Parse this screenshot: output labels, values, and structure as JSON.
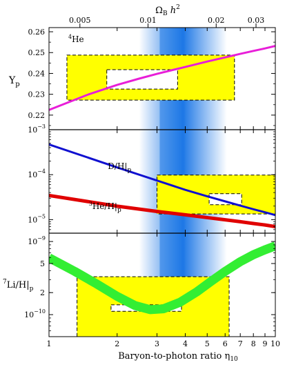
{
  "chart_data": {
    "type": "line",
    "x_axis": {
      "label": "Baryon-to-photon ratio η",
      "label_sub": "10",
      "scale": "log",
      "range": [
        1,
        10
      ],
      "ticks": [
        1,
        2,
        3,
        4,
        5,
        6,
        7,
        8,
        9,
        10
      ],
      "tick_labels": [
        "1",
        "2",
        "3",
        "4",
        "5",
        "6",
        "7",
        "8",
        "9",
        "10"
      ]
    },
    "top_axis": {
      "label": "Ω",
      "label_sub": "B",
      "label_suffix": " h",
      "label_sup": "2",
      "ticks": [
        0.005,
        0.01,
        0.02,
        0.03
      ],
      "tick_labels": [
        "0.005",
        "0.01",
        "0.02",
        "0.03"
      ]
    },
    "cmb_band": {
      "x_center": 3.5,
      "x_range": [
        2.5,
        6.1
      ],
      "color": "#1e78e6"
    },
    "panels": [
      {
        "id": "he4",
        "ylabel": "Y",
        "ylabel_sub": "p",
        "yscale": "linear",
        "ylim": [
          0.213,
          0.262
        ],
        "yticks": [
          0.22,
          0.23,
          0.24,
          0.25,
          0.26
        ],
        "ytick_labels": [
          "0.22",
          "0.23",
          "0.24",
          "0.25",
          "0.26"
        ],
        "annotation": {
          "sup": "4",
          "text": "He"
        },
        "series": [
          {
            "color": "#e81ed8",
            "x": [
              1,
              1.5,
              2,
              2.5,
              3,
              3.5,
              4,
              5,
              6,
              7,
              8,
              9,
              10
            ],
            "y": [
              0.2225,
              0.23,
              0.2345,
              0.2375,
              0.2398,
              0.2416,
              0.2431,
              0.2457,
              0.2477,
              0.2494,
              0.2508,
              0.252,
              0.2532
            ]
          }
        ],
        "boxes": [
          {
            "style": "filled",
            "fill": "#ffff00",
            "x": [
              1.2,
              6.6
            ],
            "y": [
              0.2272,
              0.2488
            ]
          },
          {
            "style": "inner",
            "fill": "#ffffff",
            "x": [
              1.8,
              3.7
            ],
            "y": [
              0.2325,
              0.2418
            ]
          }
        ]
      },
      {
        "id": "dh_he3",
        "yscale": "log",
        "ylim": [
          5e-06,
          0.001
        ],
        "yticks": [
          1e-05,
          0.0001,
          0.001
        ],
        "ytick_labels": [
          [
            "10",
            "−5"
          ],
          [
            "10",
            "−4"
          ],
          [
            "10",
            "−3"
          ]
        ],
        "annotations": [
          {
            "text": "D/H|",
            "sub": "p",
            "x": 1.82,
            "y": 0.000155
          },
          {
            "sup": "3",
            "text": "He/H|",
            "sub": "p",
            "x": 1.5,
            "y": 1.98e-05
          }
        ],
        "series": [
          {
            "name": "D/H",
            "color": "#1010d0",
            "x": [
              1,
              2,
              3,
              4,
              5,
              6,
              7,
              8,
              9,
              10
            ],
            "y": [
              0.00047,
              0.000145,
              7.4e-05,
              4.6e-05,
              3.3e-05,
              2.55e-05,
              2.05e-05,
              1.7e-05,
              1.46e-05,
              1.26e-05
            ]
          },
          {
            "name": "3He/H",
            "color": "#e00000",
            "x": [
              1,
              2,
              3,
              4,
              5,
              6,
              7,
              8,
              9,
              10
            ],
            "y": [
              3.45e-05,
              1.99e-05,
              1.52e-05,
              1.28e-05,
              1.11e-05,
              9.9e-06,
              9e-06,
              8.2e-06,
              7.6e-06,
              7e-06
            ]
          }
        ],
        "boxes": [
          {
            "style": "filled",
            "fill": "#ffff00",
            "x": [
              3.0,
              10
            ],
            "y": [
              1.34e-05,
              9.8e-05
            ]
          },
          {
            "style": "inner",
            "fill": "#ffffff",
            "x": [
              5.1,
              7.1
            ],
            "y": [
              2.15e-05,
              3.78e-05
            ]
          }
        ]
      },
      {
        "id": "li7",
        "ylabel": "Li/H|",
        "ylabel_sup": "7",
        "ylabel_sub": "p",
        "yscale": "log",
        "ylim": [
          5e-11,
          1.3e-09
        ],
        "yticks": [
          1e-10,
          2e-10,
          5e-10,
          1e-09
        ],
        "ytick_labels": [
          [
            "10",
            "−10"
          ],
          [
            "2",
            ""
          ],
          [
            "5",
            ""
          ],
          [
            "10",
            "−9"
          ]
        ],
        "series": [
          {
            "name": "7Li/H",
            "color": "#33ee33",
            "x": [
              1,
              1.3,
              1.6,
              2,
              2.4,
              2.8,
              3.2,
              3.8,
              4.5,
              5.2,
              6,
              7,
              8,
              9,
              10
            ],
            "y": [
              6e-10,
              3.9e-10,
              2.7e-10,
              1.78e-10,
              1.33e-10,
              1.17e-10,
              1.2e-10,
              1.48e-10,
              2.05e-10,
              2.85e-10,
              3.9e-10,
              5.3e-10,
              6.6e-10,
              7.7e-10,
              8.7e-10
            ]
          }
        ],
        "boxes": [
          {
            "style": "filled",
            "fill": "#ffff00",
            "x": [
              1.33,
              6.25
            ],
            "y": [
              5e-11,
              3.3e-10
            ]
          },
          {
            "style": "inner",
            "fill": "#ffffff",
            "x": [
              1.88,
              3.85
            ],
            "y": [
              1.11e-10,
              1.36e-10
            ]
          }
        ]
      }
    ]
  }
}
